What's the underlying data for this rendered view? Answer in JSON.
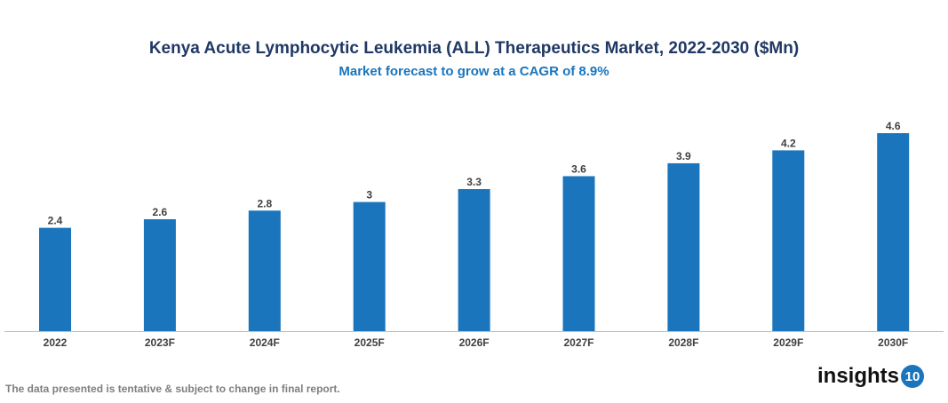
{
  "chart_data": {
    "type": "bar",
    "title": "Kenya Acute Lymphocytic Leukemia (ALL) Therapeutics Market, 2022-2030 ($Mn)",
    "subtitle": "Market forecast to grow at a CAGR of 8.9%",
    "categories": [
      "2022",
      "2023F",
      "2024F",
      "2025F",
      "2026F",
      "2027F",
      "2028F",
      "2029F",
      "2030F"
    ],
    "values": [
      2.4,
      2.6,
      2.8,
      3,
      3.3,
      3.6,
      3.9,
      4.2,
      4.6
    ],
    "xlabel": "",
    "ylabel": "",
    "ylim": [
      0,
      4.6
    ],
    "grid": false,
    "bar_color": "#1a75bc"
  },
  "footer": "The data presented is tentative & subject to change in final report.",
  "logo": {
    "text": "insights",
    "number": "10"
  }
}
